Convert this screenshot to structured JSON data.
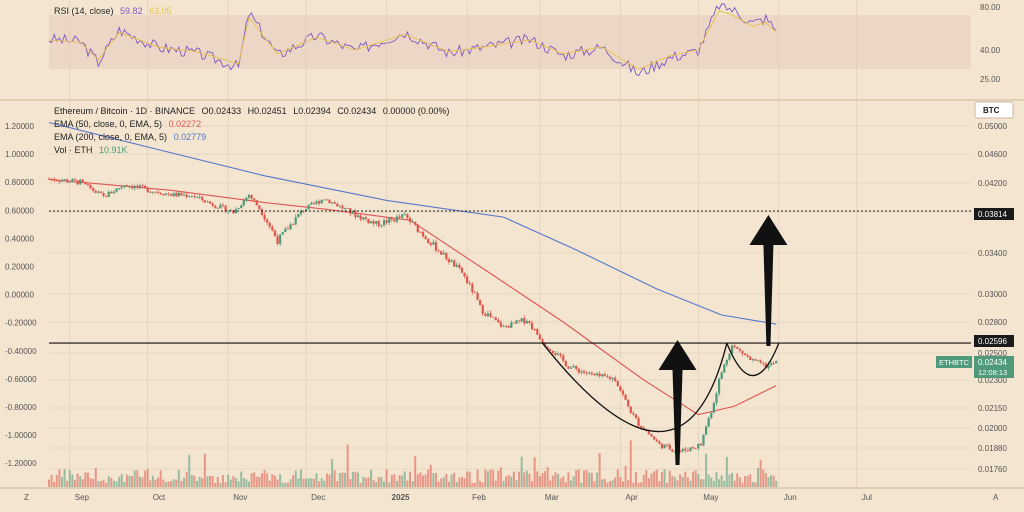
{
  "colors": {
    "background": "#F3E5D0",
    "grid": "#DCCCB6",
    "up": "#4E9A7A",
    "down": "#E0564B",
    "ema50": "#E05555",
    "ema200": "#5577CC",
    "rsi_line": "#7E57C2",
    "rsi_ma": "#E6C14A",
    "rsi_band": "#E7CBBE",
    "badge": "#4E9A7A"
  },
  "rsi_panel": {
    "label": "RSI (14, close)",
    "value": "59.82",
    "ma_value": "63.05",
    "ticks": [
      "80.00",
      "40.00",
      "25.00"
    ]
  },
  "legend": {
    "title": "Ethereum / Bitcoin · 1D · BINANCE",
    "open": "O0.02433",
    "high": "H0.02451",
    "low": "L0.02394",
    "close": "C0.02434",
    "change": "0.00000 (0.00%)",
    "ema50_label": "EMA (50, close, 0, EMA, 5)",
    "ema50_value": "0.02272",
    "ema200_label": "EMA (200, close, 0, EMA, 5)",
    "ema200_value": "0.02779",
    "vol_label": "Vol · ETH",
    "vol_value": "10.91K"
  },
  "left_axis_ticks": [
    "1.20000",
    "1.00000",
    "0.80000",
    "0.60000",
    "0.40000",
    "0.20000",
    "0.00000",
    "-0.20000",
    "-0.40000",
    "-0.60000",
    "-0.80000",
    "-1.00000",
    "-1.20000"
  ],
  "right_axis": {
    "currency": "BTC",
    "ticks": [
      "0.05000",
      "0.04600",
      "0.04200",
      "0.03800",
      "0.03400",
      "0.03000",
      "0.02800",
      "0.02500",
      "0.02300",
      "0.02150",
      "0.02000",
      "0.01880",
      "0.01760"
    ]
  },
  "badges": {
    "upper_level": "0.03814",
    "neckline": "0.02596",
    "symbol": "ETHBTC",
    "price": "0.02434",
    "countdown": "12:08:13"
  },
  "time_axis": {
    "labels": [
      "Sep",
      "Oct",
      "Nov",
      "Dec",
      "2025",
      "Feb",
      "Mar",
      "Apr",
      "May",
      "Jun",
      "Jul"
    ],
    "left_corner": "Z",
    "right_corner": "A"
  },
  "chart_data": {
    "type": "candlestick",
    "symbol": "ETHBTC",
    "interval": "1D",
    "ylim": [
      0.0172,
      0.0515
    ],
    "price_path": [
      {
        "date": "2024-08-24",
        "price": 0.0426
      },
      {
        "date": "2024-09-05",
        "price": 0.0421
      },
      {
        "date": "2024-09-14",
        "price": 0.0401
      },
      {
        "date": "2024-09-22",
        "price": 0.0418
      },
      {
        "date": "2024-10-02",
        "price": 0.041
      },
      {
        "date": "2024-10-10",
        "price": 0.0404
      },
      {
        "date": "2024-10-18",
        "price": 0.0403
      },
      {
        "date": "2024-10-25",
        "price": 0.0392
      },
      {
        "date": "2024-11-03",
        "price": 0.038
      },
      {
        "date": "2024-11-09",
        "price": 0.0404
      },
      {
        "date": "2024-11-20",
        "price": 0.0352
      },
      {
        "date": "2024-11-30",
        "price": 0.0383
      },
      {
        "date": "2024-12-08",
        "price": 0.0399
      },
      {
        "date": "2024-12-18",
        "price": 0.038
      },
      {
        "date": "2024-12-28",
        "price": 0.0368
      },
      {
        "date": "2025-01-08",
        "price": 0.0376
      },
      {
        "date": "2025-01-20",
        "price": 0.0345
      },
      {
        "date": "2025-01-30",
        "price": 0.0321
      },
      {
        "date": "2025-02-06",
        "price": 0.029
      },
      {
        "date": "2025-02-15",
        "price": 0.0275
      },
      {
        "date": "2025-02-24",
        "price": 0.0282
      },
      {
        "date": "2025-03-03",
        "price": 0.0258
      },
      {
        "date": "2025-03-12",
        "price": 0.024
      },
      {
        "date": "2025-03-22",
        "price": 0.0233
      },
      {
        "date": "2025-03-30",
        "price": 0.0231
      },
      {
        "date": "2025-04-08",
        "price": 0.0203
      },
      {
        "date": "2025-04-16",
        "price": 0.019
      },
      {
        "date": "2025-04-24",
        "price": 0.0186
      },
      {
        "date": "2025-05-02",
        "price": 0.019
      },
      {
        "date": "2025-05-09",
        "price": 0.023
      },
      {
        "date": "2025-05-14",
        "price": 0.0257
      },
      {
        "date": "2025-05-21",
        "price": 0.0245
      },
      {
        "date": "2025-05-27",
        "price": 0.024
      },
      {
        "date": "2025-05-31",
        "price": 0.0243
      }
    ],
    "ema50_path": [
      {
        "date": "2024-08-24",
        "price": 0.0425
      },
      {
        "date": "2024-10-10",
        "price": 0.041
      },
      {
        "date": "2024-11-15",
        "price": 0.0393
      },
      {
        "date": "2024-12-08",
        "price": 0.0384
      },
      {
        "date": "2025-01-10",
        "price": 0.0372
      },
      {
        "date": "2025-02-10",
        "price": 0.032
      },
      {
        "date": "2025-03-10",
        "price": 0.028
      },
      {
        "date": "2025-04-10",
        "price": 0.023
      },
      {
        "date": "2025-05-01",
        "price": 0.021
      },
      {
        "date": "2025-05-15",
        "price": 0.0216
      },
      {
        "date": "2025-05-31",
        "price": 0.0227
      }
    ],
    "ema200_path": [
      {
        "date": "2024-08-24",
        "price": 0.0505
      },
      {
        "date": "2024-10-01",
        "price": 0.047
      },
      {
        "date": "2024-11-15",
        "price": 0.043
      },
      {
        "date": "2025-01-01",
        "price": 0.0396
      },
      {
        "date": "2025-02-15",
        "price": 0.0375
      },
      {
        "date": "2025-03-15",
        "price": 0.0343
      },
      {
        "date": "2025-04-15",
        "price": 0.0305
      },
      {
        "date": "2025-05-10",
        "price": 0.0285
      },
      {
        "date": "2025-05-31",
        "price": 0.0278
      }
    ],
    "levels": [
      0.03814,
      0.02596
    ],
    "rsi_path": [
      {
        "date": "2024-08-24",
        "rsi": 52
      },
      {
        "date": "2024-09-05",
        "rsi": 50
      },
      {
        "date": "2024-09-12",
        "rsi": 32
      },
      {
        "date": "2024-09-20",
        "rsi": 60
      },
      {
        "date": "2024-10-05",
        "rsi": 45
      },
      {
        "date": "2024-10-20",
        "rsi": 40
      },
      {
        "date": "2024-11-05",
        "rsi": 28
      },
      {
        "date": "2024-11-09",
        "rsi": 75
      },
      {
        "date": "2024-11-20",
        "rsi": 38
      },
      {
        "date": "2024-12-05",
        "rsi": 55
      },
      {
        "date": "2024-12-20",
        "rsi": 42
      },
      {
        "date": "2025-01-08",
        "rsi": 58
      },
      {
        "date": "2025-01-25",
        "rsi": 40
      },
      {
        "date": "2025-02-10",
        "rsi": 46
      },
      {
        "date": "2025-02-25",
        "rsi": 52
      },
      {
        "date": "2025-03-10",
        "rsi": 38
      },
      {
        "date": "2025-03-25",
        "rsi": 45
      },
      {
        "date": "2025-04-08",
        "rsi": 22
      },
      {
        "date": "2025-04-20",
        "rsi": 36
      },
      {
        "date": "2025-05-01",
        "rsi": 42
      },
      {
        "date": "2025-05-09",
        "rsi": 82
      },
      {
        "date": "2025-05-14",
        "rsi": 78
      },
      {
        "date": "2025-05-22",
        "rsi": 66
      },
      {
        "date": "2025-05-27",
        "rsi": 70
      },
      {
        "date": "2025-05-31",
        "rsi": 60
      }
    ],
    "time_range": [
      "2024-08-24",
      "2025-08-14"
    ]
  }
}
